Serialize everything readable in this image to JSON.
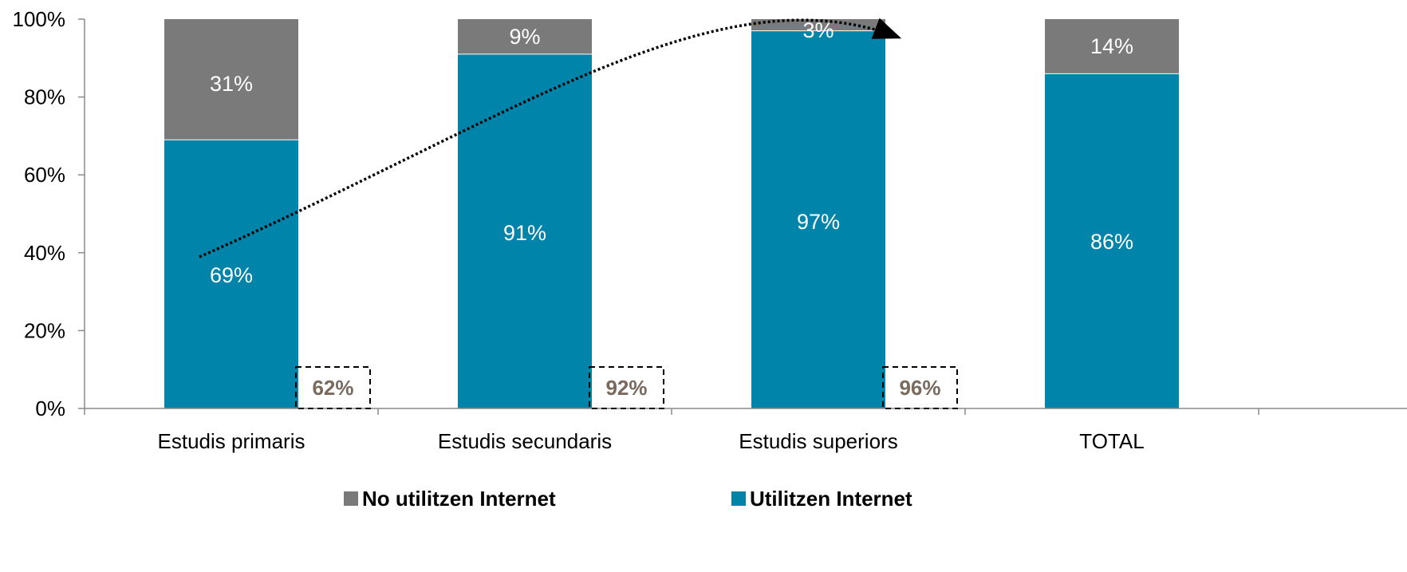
{
  "chart_data": {
    "type": "bar",
    "stacked": true,
    "percent_stacked": true,
    "categories": [
      "Estudis primaris",
      "Estudis secundaris",
      "Estudis superiors",
      "TOTAL"
    ],
    "series": [
      {
        "name": "Utilitzen Internet",
        "values": [
          69,
          91,
          97,
          86
        ],
        "labels": [
          "69%",
          "91%",
          "97%",
          "86%"
        ],
        "color": "#0084a9"
      },
      {
        "name": "No utilitzen Internet",
        "values": [
          31,
          9,
          3,
          14
        ],
        "labels": [
          "31%",
          "9%",
          "3%",
          "14%"
        ],
        "color": "#7a7a7a"
      }
    ],
    "yticks": [
      "0%",
      "20%",
      "40%",
      "60%",
      "80%",
      "100%"
    ],
    "ylim": [
      0,
      100
    ],
    "grid": false,
    "legend_position": "bottom",
    "annotations": {
      "boxes": [
        "62%",
        "92%",
        "96%"
      ],
      "trend_arrow": "dotted curved arrow rising from Estudis primaris to Estudis superiors"
    }
  }
}
